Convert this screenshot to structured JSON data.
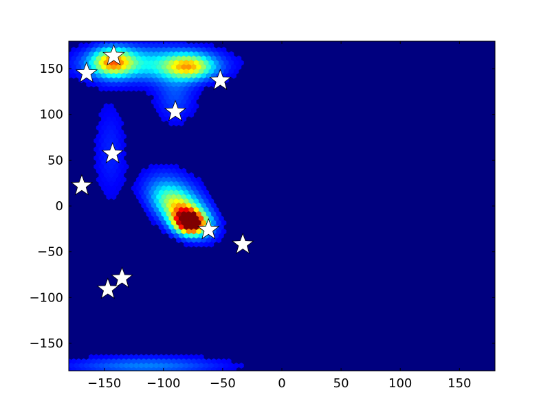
{
  "chart_data": {
    "type": "heatmap",
    "subtype": "hexbin-density-with-markers",
    "title": "",
    "xlabel": "",
    "ylabel": "",
    "xlim": [
      -180,
      180
    ],
    "ylim": [
      -180,
      180
    ],
    "x_ticks": [
      -150,
      -100,
      -50,
      0,
      50,
      100,
      150
    ],
    "y_ticks": [
      150,
      100,
      50,
      0,
      -50,
      -100,
      -150
    ],
    "x_tick_labels": [
      "−150",
      "−100",
      "−50",
      "0",
      "50",
      "100",
      "150"
    ],
    "y_tick_labels": [
      "150",
      "100",
      "50",
      "0",
      "−50",
      "−100",
      "−150"
    ],
    "colormap": "jet",
    "background_color": "#00007f",
    "grid": false,
    "legend": null,
    "density_regions": [
      {
        "x": -78,
        "y": -18,
        "sx": 9,
        "sy": 8,
        "weight": 1.0,
        "angle": -40
      },
      {
        "x": -85,
        "y": -5,
        "sx": 20,
        "sy": 11,
        "weight": 0.55,
        "angle": -48
      },
      {
        "x": -88,
        "y": 15,
        "sx": 22,
        "sy": 14,
        "weight": 0.12,
        "angle": -55
      },
      {
        "x": -143,
        "y": 157,
        "sx": 12,
        "sy": 10,
        "weight": 0.55,
        "angle": 0
      },
      {
        "x": -78,
        "y": 152,
        "sx": 14,
        "sy": 9,
        "weight": 0.48,
        "angle": 0
      },
      {
        "x": -112,
        "y": 155,
        "sx": 38,
        "sy": 13,
        "weight": 0.28,
        "angle": 0
      },
      {
        "x": -90,
        "y": 120,
        "sx": 12,
        "sy": 20,
        "weight": 0.12,
        "angle": 0
      },
      {
        "x": -145,
        "y": 60,
        "sx": 10,
        "sy": 40,
        "weight": 0.08,
        "angle": 0
      },
      {
        "x": -115,
        "y": -175,
        "sx": 45,
        "sy": 7,
        "weight": 0.18,
        "angle": 0
      }
    ],
    "markers": {
      "symbol": "star",
      "fill": "#ffffff",
      "stroke": "#000000",
      "points": [
        {
          "x": -142,
          "y": 164
        },
        {
          "x": -165,
          "y": 145
        },
        {
          "x": -52,
          "y": 137
        },
        {
          "x": -90,
          "y": 103
        },
        {
          "x": -143,
          "y": 57
        },
        {
          "x": -169,
          "y": 22
        },
        {
          "x": -62,
          "y": -26
        },
        {
          "x": -33,
          "y": -42
        },
        {
          "x": -135,
          "y": -79
        },
        {
          "x": -147,
          "y": -91
        }
      ]
    }
  }
}
